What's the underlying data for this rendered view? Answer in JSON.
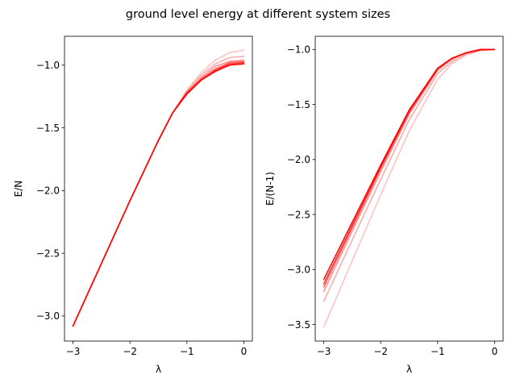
{
  "title": "ground level energy at different system sizes",
  "colors": {
    "line": "#ff0000",
    "axes": "#000000",
    "background": "#ffffff"
  },
  "chart_data": [
    {
      "type": "line",
      "xlabel": "λ",
      "ylabel": "E/N",
      "xlim": [
        -3.15,
        0.15
      ],
      "ylim": [
        -3.2,
        -0.77
      ],
      "xticks": [
        -3,
        -2,
        -1,
        0
      ],
      "xtick_labels": [
        "−3",
        "−2",
        "−1",
        "0"
      ],
      "yticks": [
        -3.0,
        -2.5,
        -2.0,
        -1.5,
        -1.0
      ],
      "ytick_labels": [
        "−3.0",
        "−2.5",
        "−2.0",
        "−1.5",
        "−1.0"
      ],
      "grid": false,
      "series": [
        {
          "alpha": 0.25,
          "x": [
            -3.0,
            -2.5,
            -2.0,
            -1.5,
            -1.25,
            -1.0,
            -0.75,
            -0.5,
            -0.25,
            0.0
          ],
          "y": [
            -3.08,
            -2.58,
            -2.08,
            -1.6,
            -1.38,
            -1.2,
            -1.06,
            -0.96,
            -0.9,
            -0.88
          ]
        },
        {
          "alpha": 0.35,
          "x": [
            -3.0,
            -2.5,
            -2.0,
            -1.5,
            -1.25,
            -1.0,
            -0.75,
            -0.5,
            -0.25,
            0.0
          ],
          "y": [
            -3.08,
            -2.58,
            -2.08,
            -1.6,
            -1.38,
            -1.21,
            -1.08,
            -0.99,
            -0.94,
            -0.93
          ]
        },
        {
          "alpha": 0.45,
          "x": [
            -3.0,
            -2.5,
            -2.0,
            -1.5,
            -1.25,
            -1.0,
            -0.75,
            -0.5,
            -0.25,
            0.0
          ],
          "y": [
            -3.08,
            -2.58,
            -2.08,
            -1.6,
            -1.38,
            -1.22,
            -1.1,
            -1.01,
            -0.97,
            -0.96
          ]
        },
        {
          "alpha": 0.6,
          "x": [
            -3.0,
            -2.5,
            -2.0,
            -1.5,
            -1.25,
            -1.0,
            -0.75,
            -0.5,
            -0.25,
            0.0
          ],
          "y": [
            -3.08,
            -2.58,
            -2.08,
            -1.6,
            -1.38,
            -1.22,
            -1.11,
            -1.03,
            -0.98,
            -0.97
          ]
        },
        {
          "alpha": 0.8,
          "x": [
            -3.0,
            -2.5,
            -2.0,
            -1.5,
            -1.25,
            -1.0,
            -0.75,
            -0.5,
            -0.25,
            0.0
          ],
          "y": [
            -3.08,
            -2.58,
            -2.08,
            -1.6,
            -1.38,
            -1.23,
            -1.12,
            -1.04,
            -0.99,
            -0.98
          ]
        },
        {
          "alpha": 1.0,
          "x": [
            -3.0,
            -2.5,
            -2.0,
            -1.5,
            -1.25,
            -1.0,
            -0.75,
            -0.5,
            -0.25,
            0.0
          ],
          "y": [
            -3.08,
            -2.58,
            -2.08,
            -1.6,
            -1.38,
            -1.23,
            -1.12,
            -1.05,
            -1.0,
            -0.99
          ]
        }
      ]
    },
    {
      "type": "line",
      "xlabel": "λ",
      "ylabel": "E/(N-1)",
      "xlim": [
        -3.15,
        0.15
      ],
      "ylim": [
        -3.65,
        -0.88
      ],
      "xticks": [
        -3,
        -2,
        -1,
        0
      ],
      "xtick_labels": [
        "−3",
        "−2",
        "−1",
        "0"
      ],
      "yticks": [
        -3.5,
        -3.0,
        -2.5,
        -2.0,
        -1.5,
        -1.0
      ],
      "ytick_labels": [
        "−3.5",
        "−3.0",
        "−2.5",
        "−2.0",
        "−1.5",
        "−1.0"
      ],
      "grid": false,
      "series": [
        {
          "alpha": 0.25,
          "x": [
            -3.0,
            -2.5,
            -2.0,
            -1.5,
            -1.0,
            -0.75,
            -0.5,
            -0.25,
            0.0
          ],
          "y": [
            -3.52,
            -2.92,
            -2.32,
            -1.74,
            -1.27,
            -1.13,
            -1.05,
            -1.01,
            -1.0
          ]
        },
        {
          "alpha": 0.35,
          "x": [
            -3.0,
            -2.5,
            -2.0,
            -1.5,
            -1.0,
            -0.75,
            -0.5,
            -0.25,
            0.0
          ],
          "y": [
            -3.29,
            -2.73,
            -2.18,
            -1.64,
            -1.22,
            -1.11,
            -1.04,
            -1.01,
            -1.0
          ]
        },
        {
          "alpha": 0.45,
          "x": [
            -3.0,
            -2.5,
            -2.0,
            -1.5,
            -1.0,
            -0.75,
            -0.5,
            -0.25,
            0.0
          ],
          "y": [
            -3.2,
            -2.65,
            -2.11,
            -1.59,
            -1.19,
            -1.09,
            -1.03,
            -1.0,
            -1.0
          ]
        },
        {
          "alpha": 0.6,
          "x": [
            -3.0,
            -2.5,
            -2.0,
            -1.5,
            -1.0,
            -0.75,
            -0.5,
            -0.25,
            0.0
          ],
          "y": [
            -3.16,
            -2.62,
            -2.08,
            -1.57,
            -1.18,
            -1.08,
            -1.03,
            -1.0,
            -1.0
          ]
        },
        {
          "alpha": 0.8,
          "x": [
            -3.0,
            -2.5,
            -2.0,
            -1.5,
            -1.0,
            -0.75,
            -0.5,
            -0.25,
            0.0
          ],
          "y": [
            -3.13,
            -2.6,
            -2.07,
            -1.56,
            -1.17,
            -1.08,
            -1.03,
            -1.0,
            -1.0
          ]
        },
        {
          "alpha": 1.0,
          "x": [
            -3.0,
            -2.5,
            -2.0,
            -1.5,
            -1.0,
            -0.75,
            -0.5,
            -0.25,
            0.0
          ],
          "y": [
            -3.09,
            -2.57,
            -2.05,
            -1.55,
            -1.17,
            -1.08,
            -1.03,
            -1.0,
            -1.0
          ]
        }
      ]
    }
  ]
}
